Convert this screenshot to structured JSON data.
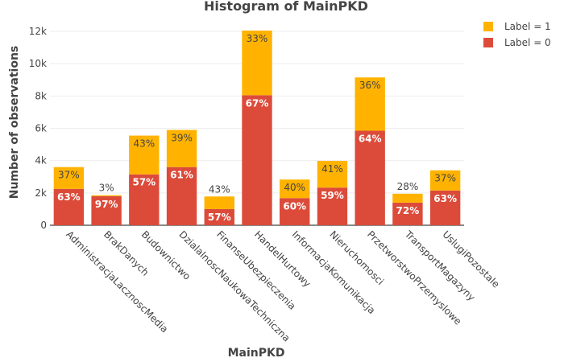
{
  "chart_data": {
    "type": "bar",
    "stacked": true,
    "title": "Histogram of MainPKD",
    "xlabel": "MainPKD",
    "ylabel": "Number of observations",
    "ylim": [
      0,
      12000
    ],
    "yticks": [
      0,
      2000,
      4000,
      6000,
      8000,
      10000,
      12000
    ],
    "ytick_labels": [
      "0",
      "2k",
      "4k",
      "6k",
      "8k",
      "10k",
      "12k"
    ],
    "grid": true,
    "legend_position": "top-right",
    "categories": [
      "AdministracjaLacznoscMedia",
      "BrakDanych",
      "Budownictwo",
      "DzialalnoscNaukowaTechniczna",
      "FinanseUbezpieczenia",
      "HandelHurtowy",
      "InformacjaKomunikacja",
      "Nieruchomosci",
      "PrzetworstwoPrzemyslowe",
      "TransportMagazyny",
      "UslugiPozostale"
    ],
    "series": [
      {
        "name": "Label = 0",
        "color": "#dc4b3a",
        "values": [
          2250,
          1800,
          3150,
          3600,
          1000,
          8050,
          1680,
          2330,
          5850,
          1400,
          2150
        ],
        "labels": [
          "63%",
          "97%",
          "57%",
          "61%",
          "57%",
          "67%",
          "60%",
          "59%",
          "64%",
          "72%",
          "63%"
        ]
      },
      {
        "name": "Label = 1",
        "color": "#ffb300",
        "values": [
          1350,
          60,
          2400,
          2300,
          780,
          4000,
          1150,
          1650,
          3300,
          550,
          1250
        ],
        "labels": [
          "37%",
          "3%",
          "43%",
          "39%",
          "43%",
          "33%",
          "40%",
          "41%",
          "36%",
          "28%",
          "37%"
        ]
      }
    ]
  }
}
